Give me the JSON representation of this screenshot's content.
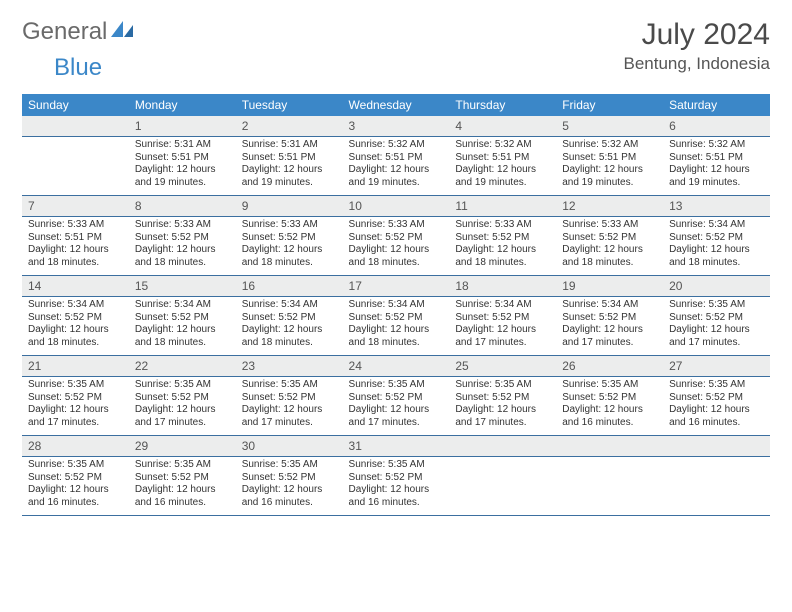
{
  "logo": {
    "text1": "General",
    "text2": "Blue"
  },
  "title": "July 2024",
  "location": "Bentung, Indonesia",
  "colors": {
    "header_bg": "#3b87c8",
    "header_text": "#ffffff",
    "daynum_bg": "#eceded",
    "row_border": "#3b6fa0",
    "text": "#333333",
    "logo_gray": "#6a6a6a",
    "logo_blue": "#3b87c8"
  },
  "weekdays": [
    "Sunday",
    "Monday",
    "Tuesday",
    "Wednesday",
    "Thursday",
    "Friday",
    "Saturday"
  ],
  "weeks": [
    [
      {
        "n": "",
        "sr": "",
        "ss": "",
        "dl": ""
      },
      {
        "n": "1",
        "sr": "5:31 AM",
        "ss": "5:51 PM",
        "dl": "12 hours and 19 minutes."
      },
      {
        "n": "2",
        "sr": "5:31 AM",
        "ss": "5:51 PM",
        "dl": "12 hours and 19 minutes."
      },
      {
        "n": "3",
        "sr": "5:32 AM",
        "ss": "5:51 PM",
        "dl": "12 hours and 19 minutes."
      },
      {
        "n": "4",
        "sr": "5:32 AM",
        "ss": "5:51 PM",
        "dl": "12 hours and 19 minutes."
      },
      {
        "n": "5",
        "sr": "5:32 AM",
        "ss": "5:51 PM",
        "dl": "12 hours and 19 minutes."
      },
      {
        "n": "6",
        "sr": "5:32 AM",
        "ss": "5:51 PM",
        "dl": "12 hours and 19 minutes."
      }
    ],
    [
      {
        "n": "7",
        "sr": "5:33 AM",
        "ss": "5:51 PM",
        "dl": "12 hours and 18 minutes."
      },
      {
        "n": "8",
        "sr": "5:33 AM",
        "ss": "5:52 PM",
        "dl": "12 hours and 18 minutes."
      },
      {
        "n": "9",
        "sr": "5:33 AM",
        "ss": "5:52 PM",
        "dl": "12 hours and 18 minutes."
      },
      {
        "n": "10",
        "sr": "5:33 AM",
        "ss": "5:52 PM",
        "dl": "12 hours and 18 minutes."
      },
      {
        "n": "11",
        "sr": "5:33 AM",
        "ss": "5:52 PM",
        "dl": "12 hours and 18 minutes."
      },
      {
        "n": "12",
        "sr": "5:33 AM",
        "ss": "5:52 PM",
        "dl": "12 hours and 18 minutes."
      },
      {
        "n": "13",
        "sr": "5:34 AM",
        "ss": "5:52 PM",
        "dl": "12 hours and 18 minutes."
      }
    ],
    [
      {
        "n": "14",
        "sr": "5:34 AM",
        "ss": "5:52 PM",
        "dl": "12 hours and 18 minutes."
      },
      {
        "n": "15",
        "sr": "5:34 AM",
        "ss": "5:52 PM",
        "dl": "12 hours and 18 minutes."
      },
      {
        "n": "16",
        "sr": "5:34 AM",
        "ss": "5:52 PM",
        "dl": "12 hours and 18 minutes."
      },
      {
        "n": "17",
        "sr": "5:34 AM",
        "ss": "5:52 PM",
        "dl": "12 hours and 18 minutes."
      },
      {
        "n": "18",
        "sr": "5:34 AM",
        "ss": "5:52 PM",
        "dl": "12 hours and 17 minutes."
      },
      {
        "n": "19",
        "sr": "5:34 AM",
        "ss": "5:52 PM",
        "dl": "12 hours and 17 minutes."
      },
      {
        "n": "20",
        "sr": "5:35 AM",
        "ss": "5:52 PM",
        "dl": "12 hours and 17 minutes."
      }
    ],
    [
      {
        "n": "21",
        "sr": "5:35 AM",
        "ss": "5:52 PM",
        "dl": "12 hours and 17 minutes."
      },
      {
        "n": "22",
        "sr": "5:35 AM",
        "ss": "5:52 PM",
        "dl": "12 hours and 17 minutes."
      },
      {
        "n": "23",
        "sr": "5:35 AM",
        "ss": "5:52 PM",
        "dl": "12 hours and 17 minutes."
      },
      {
        "n": "24",
        "sr": "5:35 AM",
        "ss": "5:52 PM",
        "dl": "12 hours and 17 minutes."
      },
      {
        "n": "25",
        "sr": "5:35 AM",
        "ss": "5:52 PM",
        "dl": "12 hours and 17 minutes."
      },
      {
        "n": "26",
        "sr": "5:35 AM",
        "ss": "5:52 PM",
        "dl": "12 hours and 16 minutes."
      },
      {
        "n": "27",
        "sr": "5:35 AM",
        "ss": "5:52 PM",
        "dl": "12 hours and 16 minutes."
      }
    ],
    [
      {
        "n": "28",
        "sr": "5:35 AM",
        "ss": "5:52 PM",
        "dl": "12 hours and 16 minutes."
      },
      {
        "n": "29",
        "sr": "5:35 AM",
        "ss": "5:52 PM",
        "dl": "12 hours and 16 minutes."
      },
      {
        "n": "30",
        "sr": "5:35 AM",
        "ss": "5:52 PM",
        "dl": "12 hours and 16 minutes."
      },
      {
        "n": "31",
        "sr": "5:35 AM",
        "ss": "5:52 PM",
        "dl": "12 hours and 16 minutes."
      },
      {
        "n": "",
        "sr": "",
        "ss": "",
        "dl": ""
      },
      {
        "n": "",
        "sr": "",
        "ss": "",
        "dl": ""
      },
      {
        "n": "",
        "sr": "",
        "ss": "",
        "dl": ""
      }
    ]
  ],
  "labels": {
    "sunrise": "Sunrise:",
    "sunset": "Sunset:",
    "daylight": "Daylight:"
  }
}
